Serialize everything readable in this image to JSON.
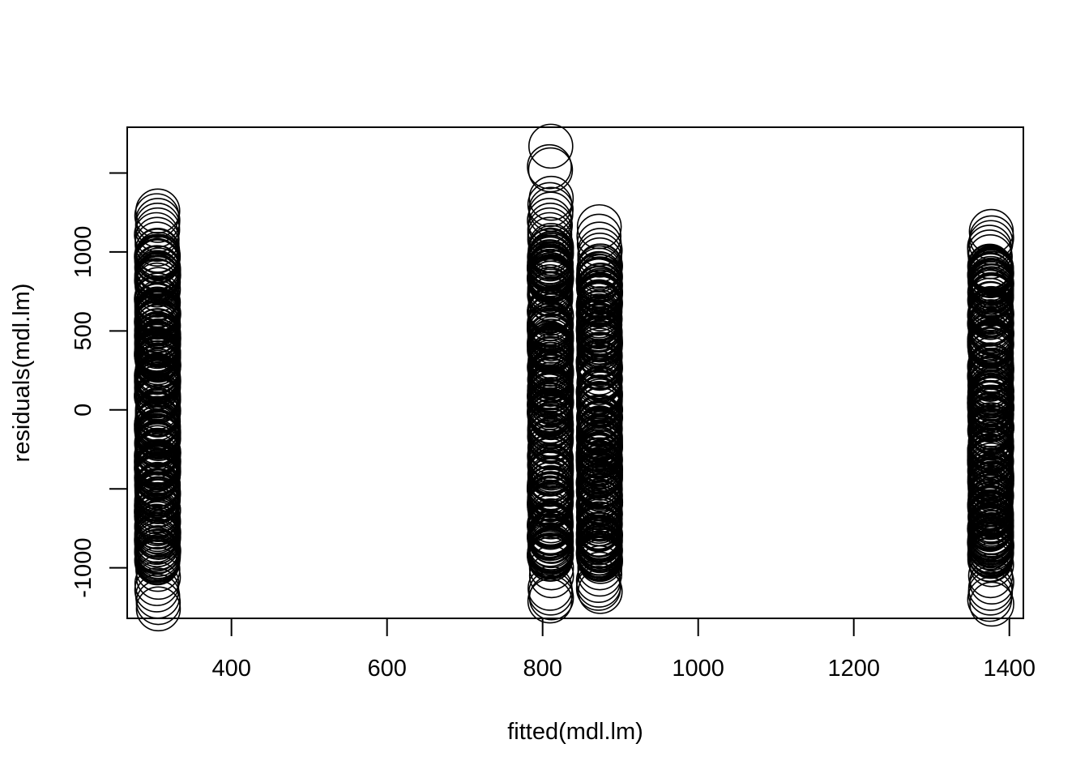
{
  "chart_data": {
    "type": "scatter",
    "title": "",
    "xlabel": "fitted(mdl.lm)",
    "ylabel": "residuals(mdl.lm)",
    "xlim": [
      266,
      1418
    ],
    "ylim": [
      -1320,
      1790
    ],
    "x_ticks": [
      400,
      600,
      800,
      1000,
      1200,
      1400
    ],
    "x_tick_labels": [
      "400",
      "600",
      "800",
      "1000",
      "1200",
      "1400"
    ],
    "y_ticks": [
      -1000,
      -500,
      0,
      500,
      1000,
      1500
    ],
    "y_tick_labels": [
      "-1000",
      "",
      "0",
      "500",
      "1000",
      ""
    ],
    "marker": "open-circle",
    "marker_color": "#000000",
    "groups": [
      {
        "fitted": 305,
        "residual_range": [
          -980,
          1020
        ],
        "extreme_residuals": [
          1260,
          1230,
          1200,
          1170,
          1140,
          1110,
          1080,
          1050,
          -1060,
          -1100,
          -1140,
          -1180,
          -1220,
          -1260,
          -1010,
          900,
          850,
          810,
          -900,
          -950
        ]
      },
      {
        "fitted": 810,
        "residual_range": [
          -950,
          1050
        ],
        "extreme_residuals": [
          1670,
          1540,
          1520,
          1340,
          1300,
          1270,
          1240,
          1200,
          1170,
          1140,
          1110,
          1080,
          -1130,
          -1160,
          -1190,
          -1210,
          -1050,
          -1000,
          -920,
          820,
          780
        ]
      },
      {
        "fitted": 873,
        "residual_range": [
          -950,
          920
        ],
        "extreme_residuals": [
          1160,
          1100,
          1050,
          1010,
          980,
          950,
          -1000,
          -1040,
          -1080,
          -1110,
          -1130,
          -1150,
          -960,
          830,
          790
        ]
      },
      {
        "fitted": 1376,
        "residual_range": [
          -950,
          930
        ],
        "extreme_residuals": [
          1130,
          1090,
          1060,
          1030,
          1000,
          970,
          -1050,
          -1090,
          -1130,
          -1160,
          -1200,
          -1230,
          -980,
          850,
          800
        ]
      }
    ]
  }
}
